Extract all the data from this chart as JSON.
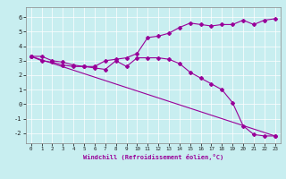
{
  "xlabel": "Windchill (Refroidissement éolien,°C)",
  "ylabel": "",
  "bg_color": "#c8eef0",
  "line_color": "#990099",
  "xlim": [
    -0.5,
    23.5
  ],
  "ylim": [
    -2.7,
    6.7
  ],
  "yticks": [
    -2,
    -1,
    0,
    1,
    2,
    3,
    4,
    5,
    6
  ],
  "xticks": [
    0,
    1,
    2,
    3,
    4,
    5,
    6,
    7,
    8,
    9,
    10,
    11,
    12,
    13,
    14,
    15,
    16,
    17,
    18,
    19,
    20,
    21,
    22,
    23
  ],
  "line1_x": [
    0,
    1,
    2,
    3,
    4,
    5,
    6,
    7,
    8,
    9,
    10,
    11,
    12,
    13,
    14,
    15,
    16,
    17,
    18,
    19,
    20,
    21,
    22,
    23
  ],
  "line1_y": [
    3.3,
    3.3,
    3.0,
    2.9,
    2.7,
    2.6,
    2.6,
    3.0,
    3.1,
    3.2,
    3.5,
    4.6,
    4.7,
    4.9,
    5.3,
    5.6,
    5.5,
    5.4,
    5.5,
    5.5,
    5.8,
    5.5,
    5.8,
    5.9
  ],
  "line2_x": [
    0,
    1,
    2,
    3,
    4,
    5,
    6,
    7,
    8,
    9,
    10,
    11,
    12,
    13,
    14,
    15,
    16,
    17,
    18,
    19,
    20,
    21,
    22,
    23
  ],
  "line2_y": [
    3.3,
    3.0,
    2.9,
    2.7,
    2.6,
    2.6,
    2.5,
    2.4,
    3.0,
    2.6,
    3.2,
    3.2,
    3.2,
    3.1,
    2.8,
    2.2,
    1.8,
    1.4,
    1.0,
    0.1,
    -1.5,
    -2.1,
    -2.2,
    -2.2
  ],
  "line3_x": [
    0,
    23
  ],
  "line3_y": [
    3.3,
    -2.2
  ],
  "xlabel_fontsize": 5.0,
  "tick_fontsize_x": 4.2,
  "tick_fontsize_y": 5.0
}
